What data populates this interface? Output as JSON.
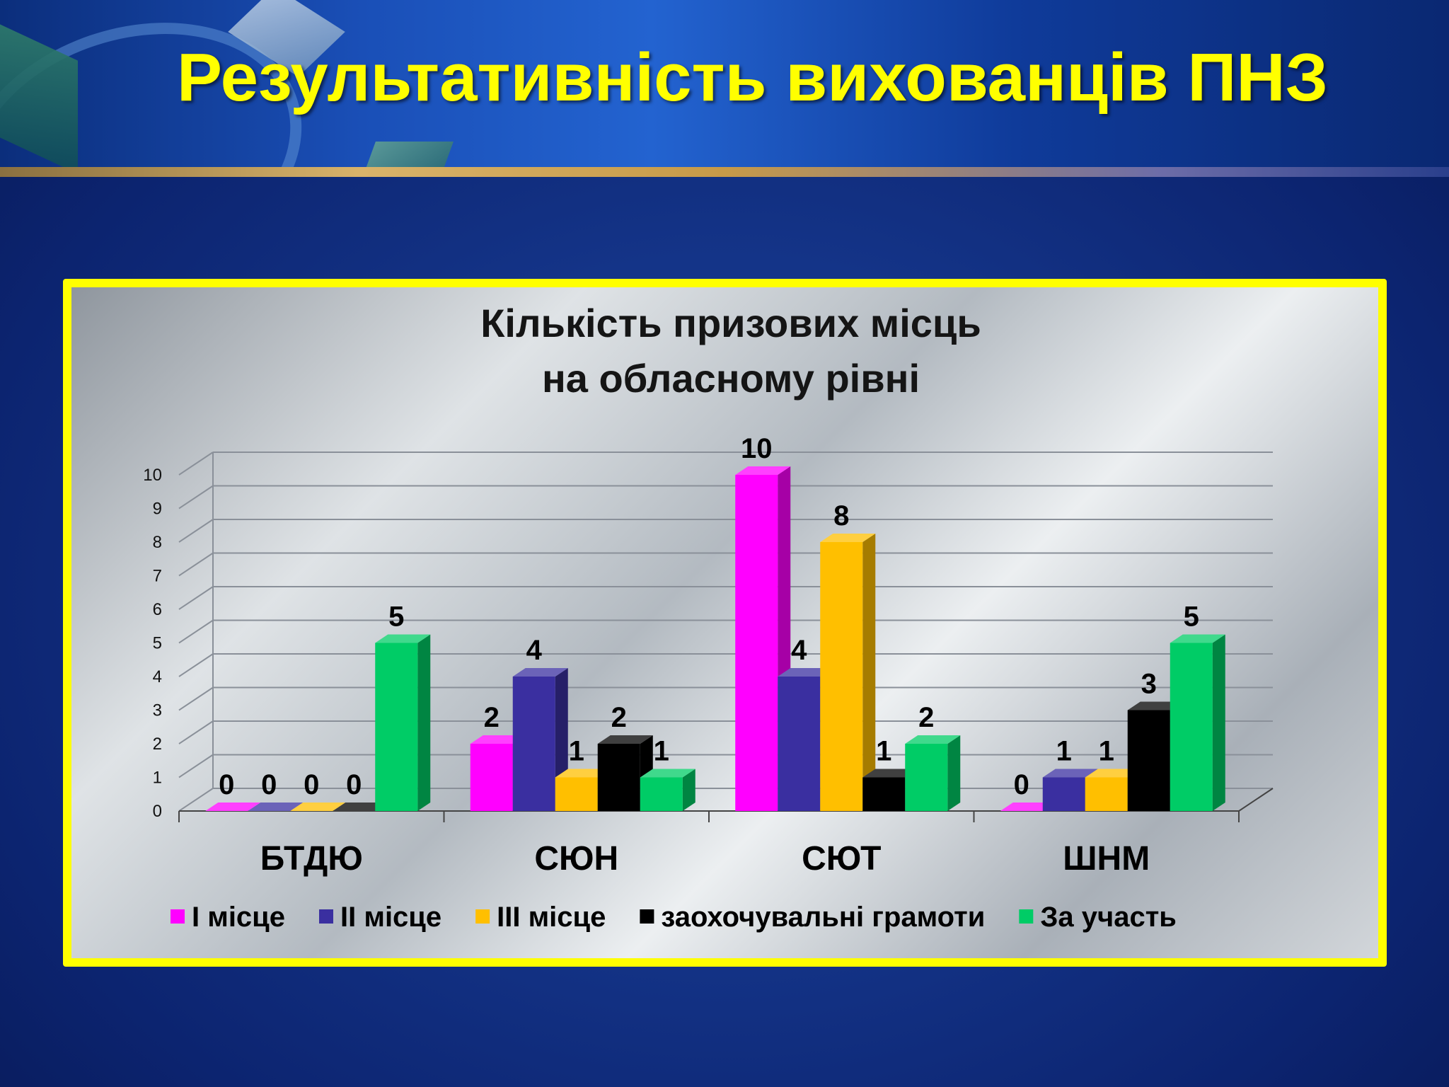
{
  "slide": {
    "title": "Результативність вихованців ПНЗ"
  },
  "chart_data": {
    "type": "bar",
    "title": [
      "Кількість призових місць",
      "на обласному рівні"
    ],
    "categories": [
      "БТДЮ",
      "СЮН",
      "СЮТ",
      "ШНМ"
    ],
    "series": [
      {
        "name": "I місце",
        "values": [
          0,
          2,
          10,
          0
        ],
        "color": "#ff00ff"
      },
      {
        "name": "II місце",
        "values": [
          0,
          4,
          4,
          1
        ],
        "color": "#3a2fa0"
      },
      {
        "name": "III  місце",
        "values": [
          0,
          1,
          8,
          1
        ],
        "color": "#ffbf00"
      },
      {
        "name": "заохочувальні грамоти",
        "values": [
          0,
          2,
          1,
          3
        ],
        "color": "#000000"
      },
      {
        "name": "За участь",
        "values": [
          5,
          1,
          2,
          5
        ],
        "color": "#00cc66"
      }
    ],
    "ylim": [
      0,
      10
    ],
    "yticks": [
      0,
      1,
      2,
      3,
      4,
      5,
      6,
      7,
      8,
      9,
      10
    ],
    "grid": true,
    "data_labels": true,
    "legend_position": "bottom",
    "style": "3d-clustered"
  }
}
